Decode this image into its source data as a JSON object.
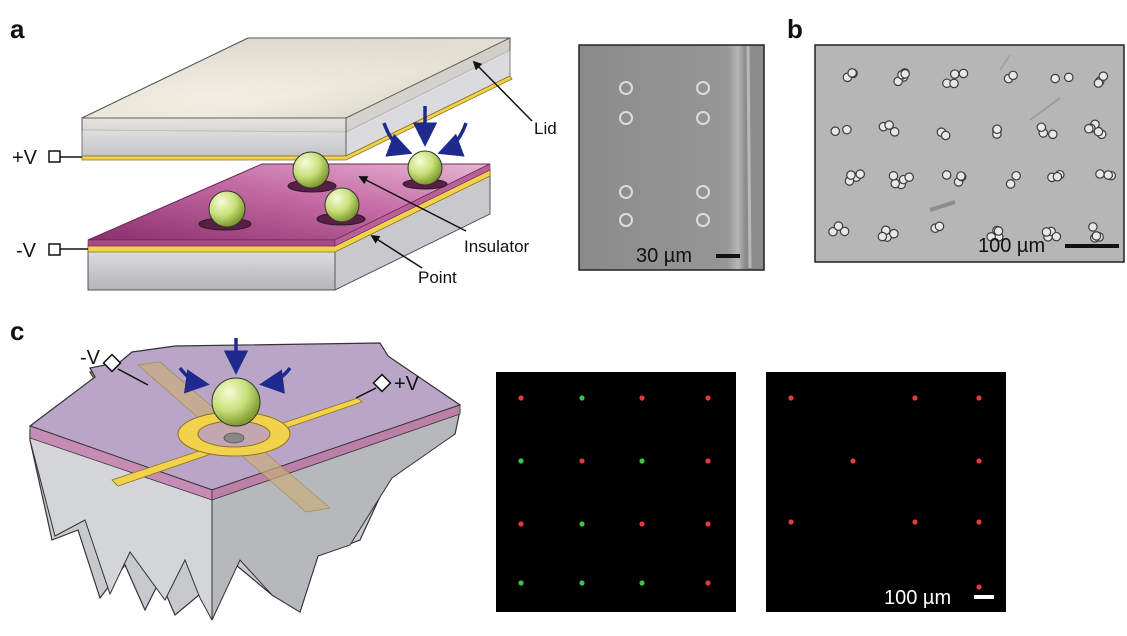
{
  "panel_labels": {
    "a": "a",
    "b": "b",
    "c": "c"
  },
  "panel_a": {
    "plus_v": "+V",
    "minus_v": "-V",
    "lid": "Lid",
    "insulator": "Insulator",
    "point": "Point",
    "micrograph_scale": "30 µm"
  },
  "panel_b": {
    "micrograph_scale": "100 µm"
  },
  "panel_c": {
    "minus_v": "-V",
    "plus_v": "+V",
    "fluorescence_scale": "100 µm"
  },
  "colors": {
    "electrode": "#f2d24a",
    "insulator": "#b0558f",
    "bead": "#c8e07a",
    "arrow": "#1f2a8f",
    "micrograph_bg": "#888888",
    "fluor_red": "#e23a3a",
    "fluor_green": "#3ec24a"
  }
}
